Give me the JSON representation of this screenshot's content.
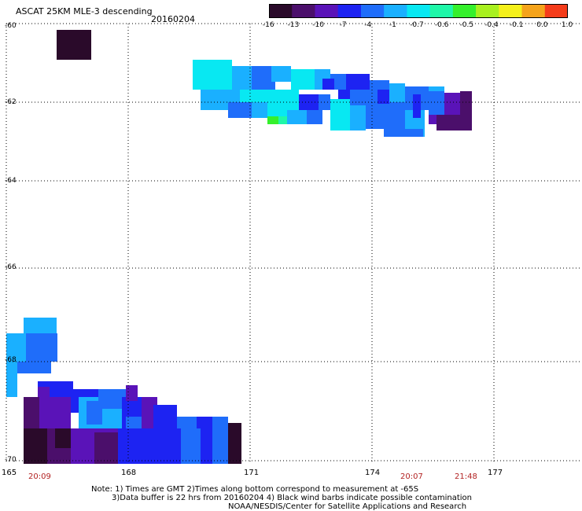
{
  "header": {
    "title": "ASCAT 25KM MLE-3 descending",
    "date": "20160204"
  },
  "colorbar": {
    "labels": [
      "-16",
      "-13",
      "-10",
      "-7",
      "-4",
      "-1",
      "-0.7",
      "-0.6",
      "-0.5",
      "-0.4",
      "-0.1",
      "0.0",
      "1.0"
    ],
    "colors": [
      "#2a0a2a",
      "#4b0f6b",
      "#5a13b8",
      "#1d23f2",
      "#1f6dfa",
      "#1ab0ff",
      "#08e8f2",
      "#1ff7a8",
      "#35f02c",
      "#a8f01f",
      "#f5f01a",
      "#f5a31a",
      "#f53c1a"
    ]
  },
  "map": {
    "lat_labels": [
      "-60",
      "-62",
      "-64",
      "-66",
      "-68",
      "-70"
    ],
    "lon_labels": [
      "165",
      "168",
      "171",
      "174",
      "177"
    ],
    "time_labels": [
      "20:09",
      "20:07",
      "21:48"
    ]
  },
  "footer": {
    "line1": "Note: 1) Times are GMT 2)Times along bottom correspond to measurement at -65S",
    "line2": "3)Data buffer is 22 hrs from 20160204 4) Black wind barbs indicate possible contamination",
    "line3": "NOAA/NESDIS/Center for Satellite Applications and Research"
  }
}
